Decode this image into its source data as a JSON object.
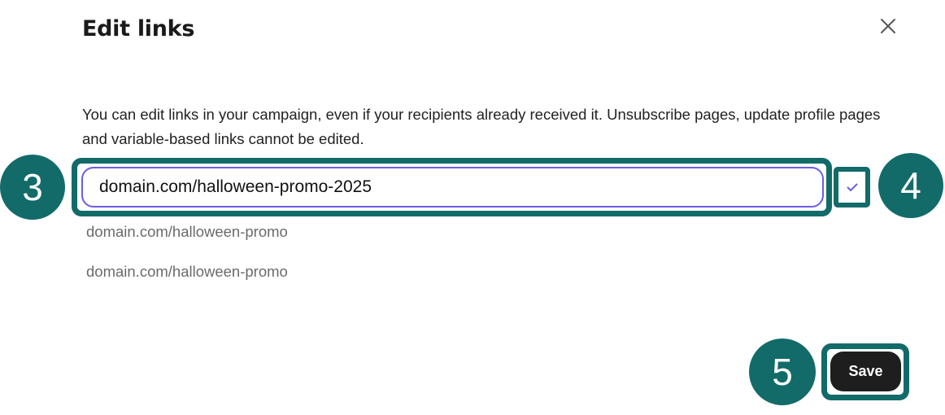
{
  "dialog": {
    "title": "Edit links",
    "close_icon": "close-icon",
    "description": "You can edit links in your campaign, even if your recipients already received it. Unsubscribe pages, update profile pages and variable-based links cannot be edited.",
    "link_input_value": "domain.com/halloween-promo-2025",
    "confirm_icon": "check-icon",
    "links": [
      "domain.com/halloween-promo",
      "domain.com/halloween-promo"
    ],
    "save_label": "Save"
  },
  "annotations": {
    "step_input": "3",
    "step_confirm": "4",
    "step_save": "5",
    "highlight_color": "#126b69"
  }
}
